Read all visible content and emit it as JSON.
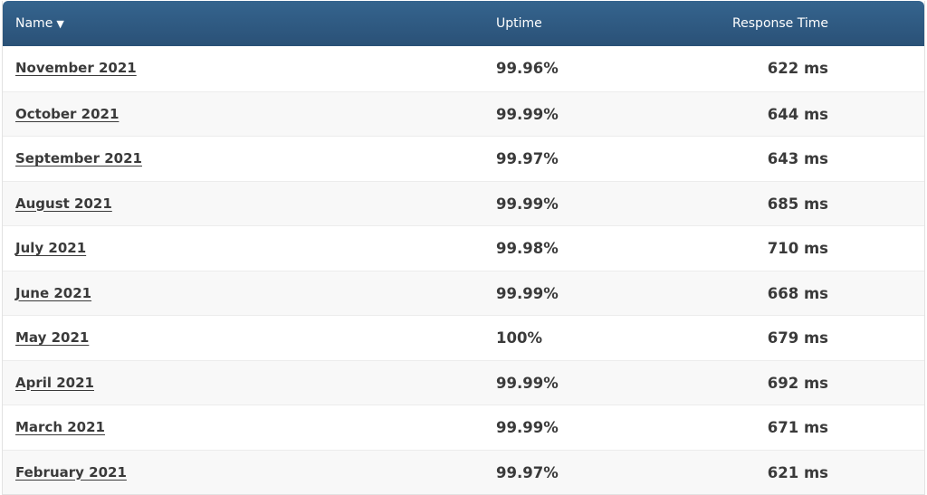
{
  "header": {
    "name": "Name",
    "sort_indicator": "▼",
    "uptime": "Uptime",
    "response_time": "Response Time"
  },
  "rows": [
    {
      "name": "November 2021",
      "uptime": "99.96%",
      "response_time": "622 ms"
    },
    {
      "name": "October 2021",
      "uptime": "99.99%",
      "response_time": "644 ms"
    },
    {
      "name": "September 2021",
      "uptime": "99.97%",
      "response_time": "643 ms"
    },
    {
      "name": "August 2021",
      "uptime": "99.99%",
      "response_time": "685 ms"
    },
    {
      "name": "July 2021",
      "uptime": "99.98%",
      "response_time": "710 ms"
    },
    {
      "name": "June 2021",
      "uptime": "99.99%",
      "response_time": "668 ms"
    },
    {
      "name": "May 2021",
      "uptime": "100%",
      "response_time": "679 ms"
    },
    {
      "name": "April 2021",
      "uptime": "99.99%",
      "response_time": "692 ms"
    },
    {
      "name": "March 2021",
      "uptime": "99.99%",
      "response_time": "671 ms"
    },
    {
      "name": "February 2021",
      "uptime": "99.97%",
      "response_time": "621 ms"
    }
  ]
}
